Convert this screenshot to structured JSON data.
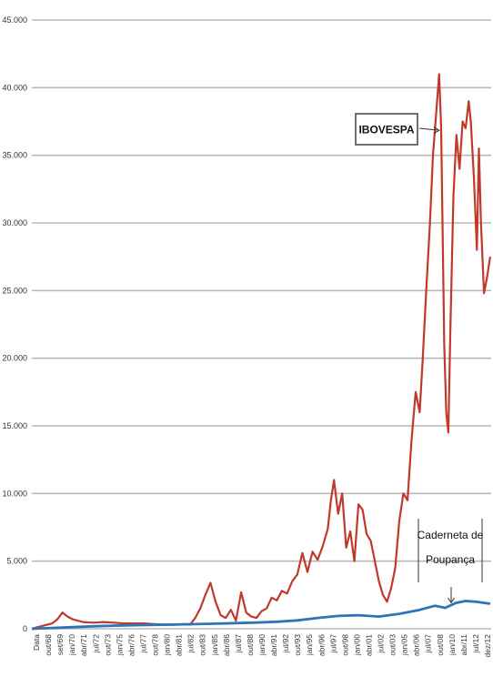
{
  "chart_data": {
    "type": "line",
    "title": "",
    "xlabel": "",
    "ylabel": "",
    "ylim": [
      0,
      45000
    ],
    "yticks": [
      "0",
      "5.000",
      "10.000",
      "15.000",
      "20.000",
      "25.000",
      "30.000",
      "35.000",
      "40.000",
      "45.000"
    ],
    "grid": true,
    "legend": "none",
    "xlim": [
      1968.0,
      2013.0
    ],
    "x_tick_labels": [
      "Data",
      "out/68",
      "set/69",
      "jan/70",
      "abr/71",
      "jul/72",
      "out/73",
      "jan/75",
      "abr/76",
      "jul/77",
      "out/78",
      "jan/80",
      "abr/81",
      "jul/82",
      "out/83",
      "jan/85",
      "abr/86",
      "jul/87",
      "out/88",
      "jan/90",
      "abr/91",
      "jul/92",
      "out/93",
      "jan/95",
      "abr/96",
      "jul/97",
      "out/98",
      "jan/00",
      "abr/01",
      "jul/02",
      "out/03",
      "jan/05",
      "abr/06",
      "jul/07",
      "out/08",
      "jan/10",
      "abr/11",
      "jul/12",
      "dez/12"
    ],
    "series": [
      {
        "name": "IBOVESPA",
        "color": "#c0392b",
        "x": [
          1968.0,
          1969.0,
          1970.0,
          1970.5,
          1971.0,
          1971.5,
          1972.0,
          1973.0,
          1974.0,
          1975.0,
          1976.0,
          1977.0,
          1978.0,
          1979.0,
          1980.0,
          1981.0,
          1982.0,
          1983.0,
          1983.5,
          1984.0,
          1984.5,
          1985.0,
          1985.5,
          1986.0,
          1986.5,
          1987.0,
          1987.5,
          1988.0,
          1988.5,
          1989.0,
          1989.5,
          1990.0,
          1990.5,
          1991.0,
          1991.5,
          1992.0,
          1992.5,
          1993.0,
          1993.5,
          1994.0,
          1994.5,
          1995.0,
          1995.5,
          1996.0,
          1996.5,
          1997.0,
          1997.3,
          1997.6,
          1998.0,
          1998.4,
          1998.8,
          1999.2,
          1999.6,
          2000.0,
          2000.4,
          2000.8,
          2001.2,
          2001.6,
          2002.0,
          2002.4,
          2002.8,
          2003.2,
          2003.6,
          2004.0,
          2004.4,
          2004.8,
          2005.2,
          2005.6,
          2006.0,
          2006.3,
          2006.6,
          2007.0,
          2007.3,
          2007.6,
          2007.9,
          2008.1,
          2008.4,
          2008.6,
          2008.8,
          2009.0,
          2009.3,
          2009.6,
          2009.9,
          2010.2,
          2010.5,
          2010.8,
          2011.0,
          2011.3,
          2011.6,
          2011.8,
          2012.0,
          2012.3,
          2012.6,
          2012.9
        ],
        "values": [
          0,
          200,
          400,
          700,
          1200,
          900,
          700,
          500,
          450,
          500,
          450,
          400,
          400,
          400,
          350,
          300,
          300,
          350,
          300,
          800,
          1500,
          2500,
          3400,
          2000,
          1000,
          800,
          1400,
          600,
          2700,
          1200,
          900,
          800,
          1300,
          1500,
          2300,
          2100,
          2800,
          2600,
          3500,
          4000,
          5600,
          4200,
          5700,
          5100,
          6100,
          7400,
          9500,
          11000,
          8500,
          10000,
          6000,
          7200,
          5000,
          9200,
          8800,
          7000,
          6500,
          5000,
          3500,
          2500,
          2000,
          3000,
          4500,
          8000,
          10000,
          9500,
          14000,
          17500,
          16000,
          20000,
          24500,
          30000,
          35000,
          38000,
          41000,
          37000,
          21000,
          16000,
          14500,
          22000,
          32000,
          36500,
          34000,
          37500,
          37000,
          39000,
          37500,
          33500,
          28000,
          35500,
          30000,
          24800,
          26000,
          27500
        ]
      },
      {
        "name": "Caderneta de Poupança",
        "color": "#2e75b6",
        "x": [
          1968.0,
          1970.0,
          1972.0,
          1974.0,
          1976.0,
          1978.0,
          1980.0,
          1982.0,
          1984.0,
          1986.0,
          1988.0,
          1990.0,
          1992.0,
          1994.0,
          1996.0,
          1998.0,
          2000.0,
          2002.0,
          2004.0,
          2006.0,
          2007.5,
          2008.5,
          2009.5,
          2010.5,
          2011.5,
          2012.9
        ],
        "values": [
          0,
          60,
          120,
          180,
          230,
          260,
          290,
          310,
          340,
          380,
          420,
          460,
          520,
          620,
          800,
          950,
          1000,
          900,
          1100,
          1400,
          1700,
          1550,
          1900,
          2050,
          2000,
          1850
        ]
      }
    ],
    "annotations": [
      {
        "text": "IBOVESPA",
        "series": 0
      },
      {
        "text_lines": [
          "Caderneta de",
          "Poupança"
        ],
        "series": 1
      }
    ]
  }
}
